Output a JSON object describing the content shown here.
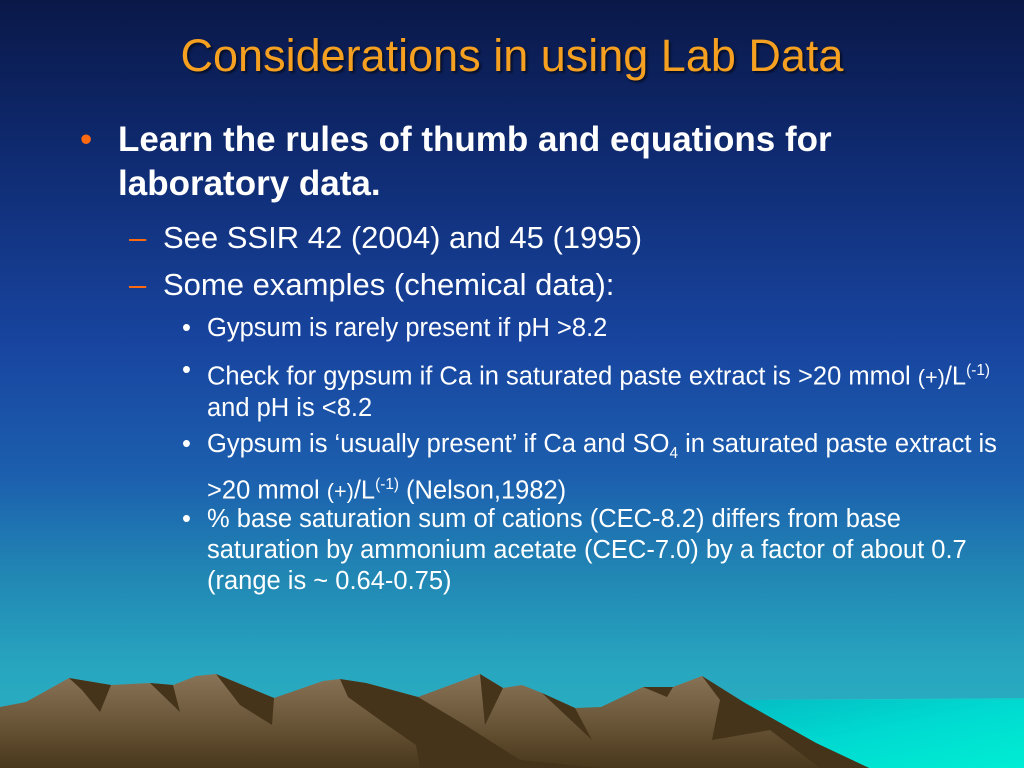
{
  "slide": {
    "title": "Considerations in using Lab Data",
    "bullet": {
      "text": "Learn the rules of thumb and equations for laboratory data.",
      "subitems": [
        {
          "text": "See SSIR 42 (2004) and 45 (1995)"
        },
        {
          "text": "Some examples (chemical data):"
        }
      ],
      "examples": [
        {
          "text": "Gypsum is rarely present if pH >8.2"
        },
        {
          "pre": "Check for gypsum if Ca in saturated paste extract is >20 mmol ",
          "unit": "(+)",
          "mid": "/L",
          "sup": "(-1)",
          "post": " and pH is <8.2"
        },
        {
          "pre": "Gypsum is ‘usually present’ if Ca and SO",
          "sub": "4",
          "mid1": " in saturated paste extract is >20 mmol ",
          "unit": "(+)",
          "mid": "/L",
          "sup": "(-1)",
          "post": " (Nelson,1982)"
        },
        {
          "text": "% base saturation sum of cations (CEC-8.2) differs from base saturation by ammonium acetate (CEC-7.0) by a factor of about 0.7 (range is ~ 0.64-0.75)"
        }
      ]
    },
    "markers": {
      "level1": "•",
      "level2": "–",
      "level3": "•"
    },
    "colors": {
      "title": "#f5a020",
      "bullet": "#ff6a10",
      "text": "#ffffff",
      "mountain_light": "#857055",
      "mountain_dark": "#45341a",
      "sea": "#00f0d0"
    }
  }
}
